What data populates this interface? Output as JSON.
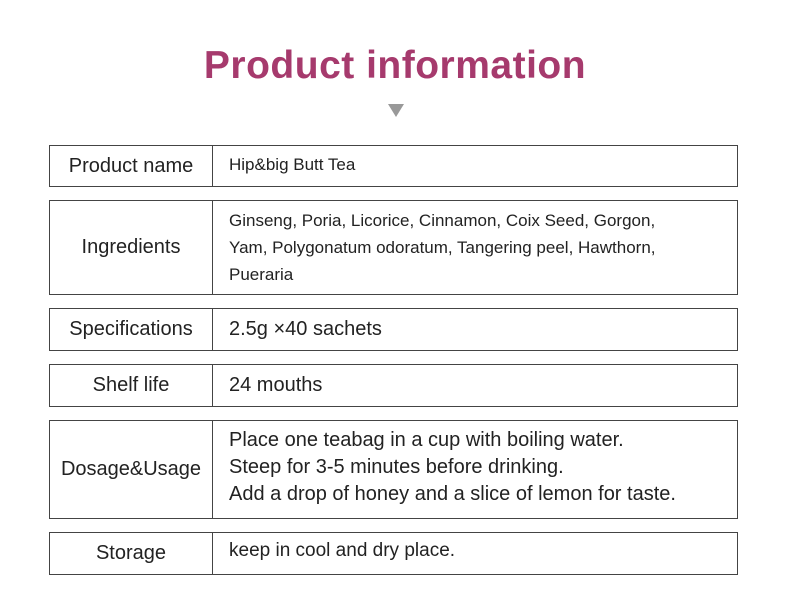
{
  "title": "Product information",
  "arrow_icon": "triangle-down-icon",
  "title_color": "#a63a6d",
  "rows": [
    {
      "label": "Product name",
      "lines": [
        "Hip&big Butt Tea"
      ]
    },
    {
      "label": "Ingredients",
      "lines": [
        "Ginseng, Poria, Licorice, Cinnamon, Coix Seed, Gorgon,",
        "Yam, Polygonatum odoratum, Tangering peel, Hawthorn,",
        "Pueraria"
      ]
    },
    {
      "label": "Specifications",
      "lines": [
        "2.5g ×40 sachets"
      ]
    },
    {
      "label": "Shelf life",
      "lines": [
        "24 mouths"
      ]
    },
    {
      "label": "Dosage&Usage",
      "lines": [
        "Place one teabag in a cup with boiling water.",
        "Steep for 3-5 minutes before drinking.",
        "Add a drop of honey and a slice of lemon for taste."
      ]
    },
    {
      "label": "Storage",
      "lines": [
        "keep in cool and dry place."
      ]
    }
  ]
}
